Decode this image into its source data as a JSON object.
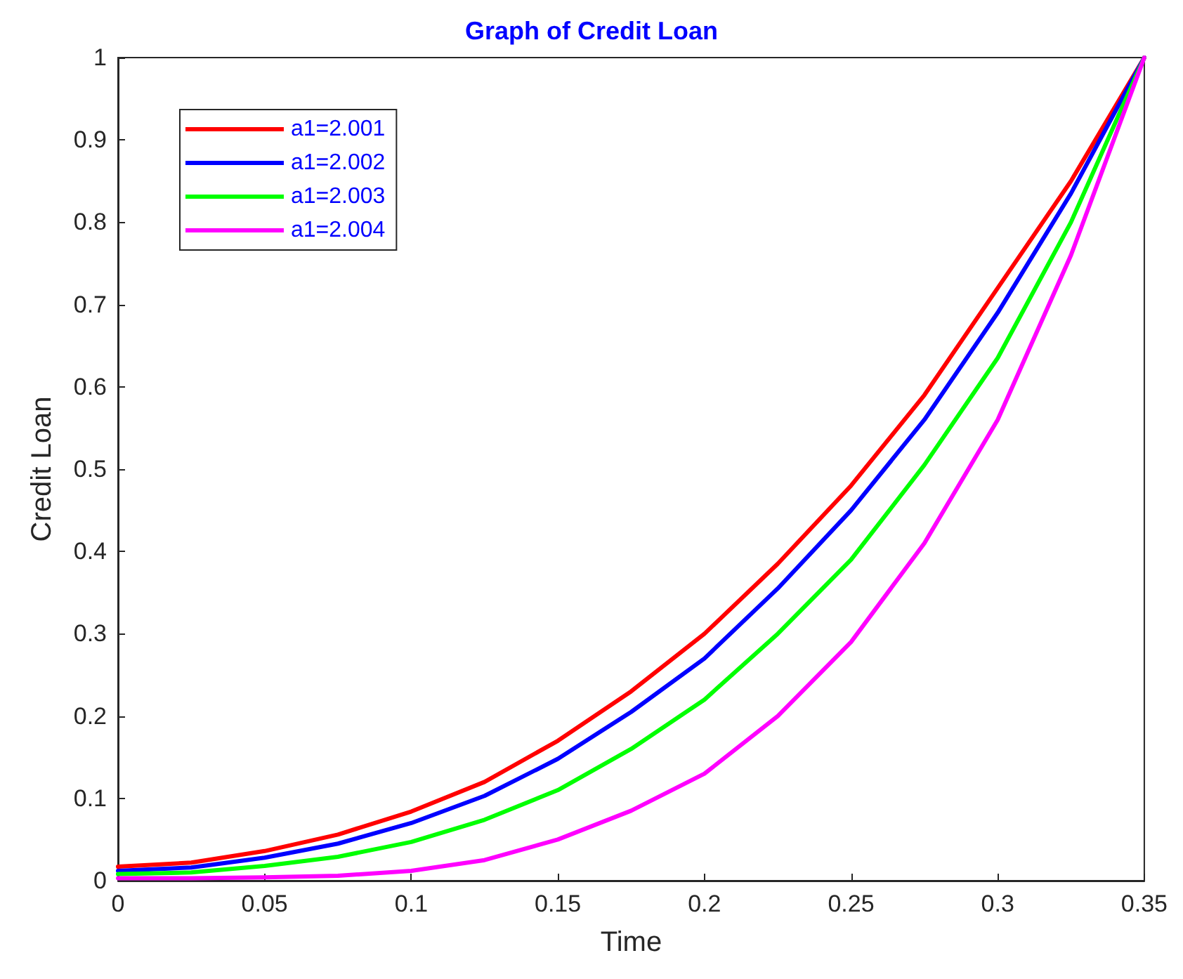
{
  "chart_data": {
    "type": "line",
    "title": "Graph of Credit Loan",
    "xlabel": "Time",
    "ylabel": "Credit Loan",
    "x": [
      0,
      0.025,
      0.05,
      0.075,
      0.1,
      0.125,
      0.15,
      0.175,
      0.2,
      0.225,
      0.25,
      0.275,
      0.3,
      0.325,
      0.35
    ],
    "series": [
      {
        "name": "a1=2.001",
        "color": "#ff0000",
        "values": [
          0.017,
          0.022,
          0.036,
          0.056,
          0.084,
          0.12,
          0.17,
          0.23,
          0.3,
          0.385,
          0.48,
          0.59,
          0.72,
          0.85,
          1
        ]
      },
      {
        "name": "a1=2.002",
        "color": "#0000ff",
        "values": [
          0.012,
          0.016,
          0.028,
          0.045,
          0.07,
          0.103,
          0.148,
          0.205,
          0.27,
          0.355,
          0.45,
          0.56,
          0.69,
          0.835,
          1
        ]
      },
      {
        "name": "a1=2.003",
        "color": "#00ff00",
        "values": [
          0.008,
          0.01,
          0.018,
          0.029,
          0.047,
          0.074,
          0.11,
          0.16,
          0.22,
          0.3,
          0.39,
          0.505,
          0.635,
          0.8,
          1
        ]
      },
      {
        "name": "a1=2.004",
        "color": "#ff00ff",
        "values": [
          0.003,
          0.003,
          0.004,
          0.006,
          0.012,
          0.025,
          0.05,
          0.085,
          0.13,
          0.2,
          0.29,
          0.41,
          0.56,
          0.76,
          1
        ]
      }
    ],
    "xlim": [
      0,
      0.35
    ],
    "xticks": [
      0,
      0.05,
      0.1,
      0.15,
      0.2,
      0.25,
      0.3,
      0.35
    ],
    "ylim": [
      0,
      1
    ],
    "yticks": [
      0,
      0.1,
      0.2,
      0.3,
      0.4,
      0.5,
      0.6,
      0.7,
      0.8,
      0.9,
      1
    ],
    "grid": false,
    "legend": "top left",
    "marker": "none",
    "line_style": "solid"
  }
}
